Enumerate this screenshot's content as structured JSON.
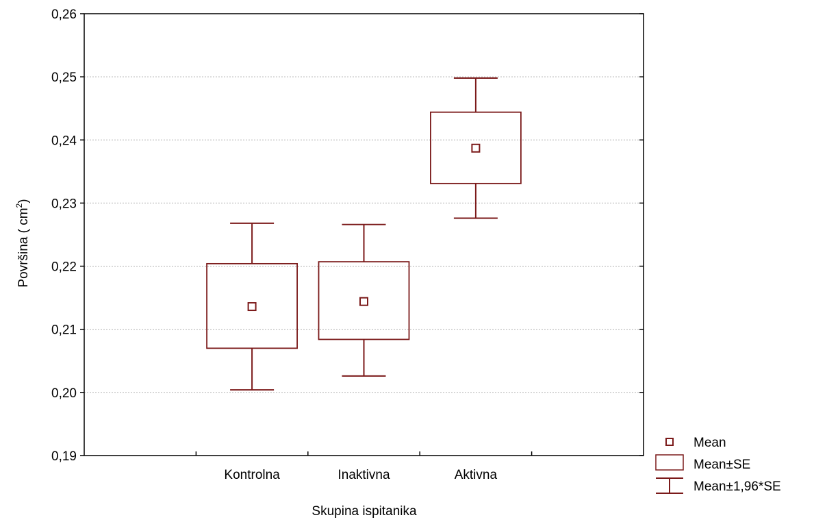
{
  "chart_data": {
    "type": "box",
    "title": "",
    "xlabel": "Skupina ispitanika",
    "ylabel": "Površina",
    "ylabel_unit_open": " ( cm",
    "ylabel_unit_sup": "2",
    "ylabel_unit_close": ")",
    "categories": [
      "Kontrolna",
      "Inaktivna",
      "Aktivna"
    ],
    "ylim": [
      0.19,
      0.26
    ],
    "yticks": [
      0.19,
      0.2,
      0.21,
      0.22,
      0.23,
      0.24,
      0.25,
      0.26
    ],
    "ytick_labels": [
      "0,19",
      "0,20",
      "0,21",
      "0,22",
      "0,23",
      "0,24",
      "0,25",
      "0,26"
    ],
    "grid": true,
    "series": [
      {
        "category": "Kontrolna",
        "mean": 0.2136,
        "se_low": 0.207,
        "se_high": 0.2204,
        "ci_low": 0.2004,
        "ci_high": 0.2268
      },
      {
        "category": "Inaktivna",
        "mean": 0.2144,
        "se_low": 0.2084,
        "se_high": 0.2207,
        "ci_low": 0.2026,
        "ci_high": 0.2266
      },
      {
        "category": "Aktivna",
        "mean": 0.2387,
        "se_low": 0.2331,
        "se_high": 0.2444,
        "ci_low": 0.2276,
        "ci_high": 0.2498
      }
    ],
    "legend": {
      "position": "bottom-right",
      "items": [
        "Mean",
        "Mean±SE",
        "Mean±1,96*SE"
      ]
    },
    "colors": {
      "series": "#7b1a1a",
      "grid": "#b0b0b0",
      "axis": "#000000"
    }
  }
}
